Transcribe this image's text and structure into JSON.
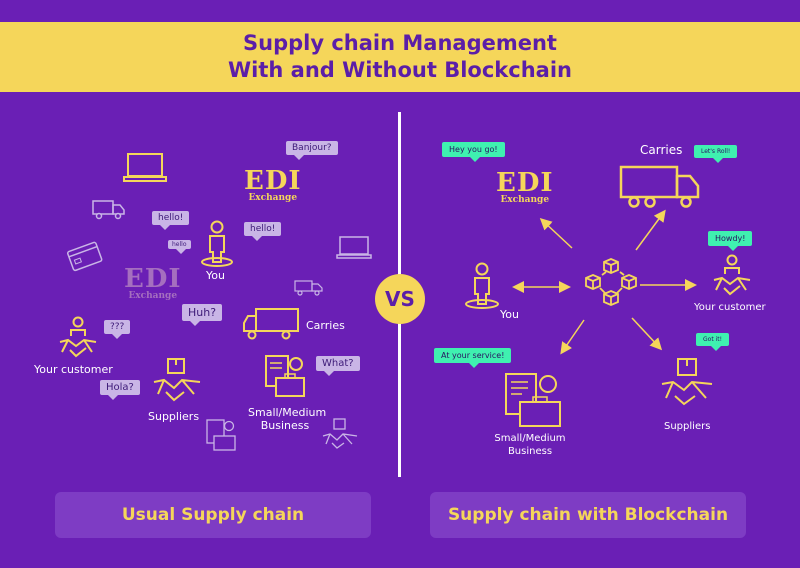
{
  "title": {
    "line1": "Supply chain Management",
    "line2": "With and Without Blockchain"
  },
  "vs_label": "VS",
  "colors": {
    "background": "#6a1fb5",
    "accent_yellow": "#f5d65a",
    "bubble_lavender": "#c9b5e6",
    "bubble_green": "#3ff0b0",
    "footer_box": "#7e3cc4"
  },
  "left": {
    "edi_main": {
      "big": "EDI",
      "small": "Exchange"
    },
    "edi_faded": {
      "big": "EDI",
      "small": "Exchange"
    },
    "labels": {
      "you": "You",
      "carries": "Carries",
      "your_customer": "Your customer",
      "suppliers": "Suppliers",
      "business_line1": "Small/Medium",
      "business_line2": "Business"
    },
    "bubbles": {
      "banjour": "Banjour?",
      "hello1": "hello!",
      "hello2": "hello!",
      "hello_small": "hello",
      "huh": "Huh?",
      "qqq": "???",
      "what": "What?",
      "hola": "Hola?"
    },
    "footer": "Usual Supply chain"
  },
  "right": {
    "edi": {
      "big": "EDI",
      "small": "Exchange"
    },
    "labels": {
      "carries": "Carries",
      "you": "You",
      "your_customer": "Your customer",
      "business_line1": "Small/Medium",
      "business_line2": "Business",
      "suppliers": "Suppliers"
    },
    "bubbles": {
      "hey": "Hey you go!",
      "lets_roll": "Let's Roll!",
      "howdy": "Howdy!",
      "service": "At your service!",
      "got_it": "Got it!"
    },
    "footer": "Supply chain with Blockchain"
  }
}
